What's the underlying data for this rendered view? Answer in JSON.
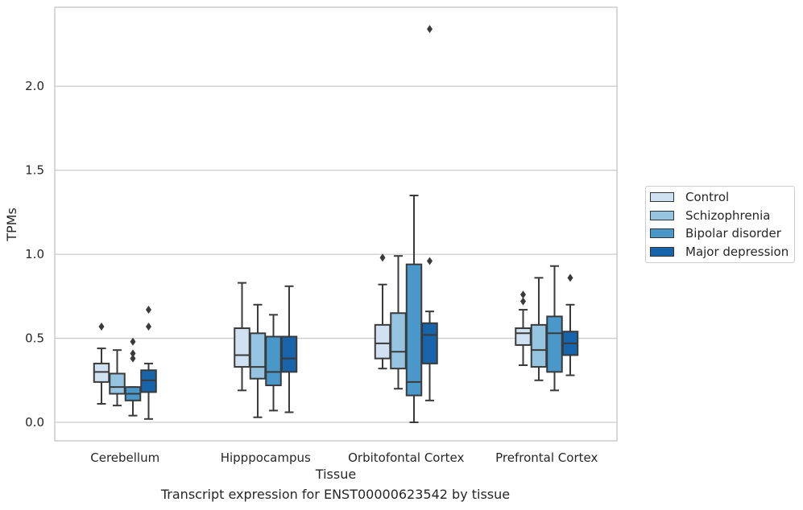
{
  "chart_data": {
    "type": "box",
    "title": "",
    "xlabel": "Tissue",
    "ylabel": "TPMs",
    "categories": [
      "Cerebellum",
      "Hipppocampus",
      "Orbitofontal Cortex",
      "Prefrontal Cortex"
    ],
    "ylim": [
      -0.11,
      2.47
    ],
    "yticks": [
      "0.0",
      "0.5",
      "1.0",
      "1.5",
      "2.0"
    ],
    "grid": "horizontal",
    "legend_position": "right",
    "series": [
      {
        "name": "Control",
        "color": "#d0e1f2",
        "boxes": [
          {
            "whisker_low": 0.11,
            "q1": 0.24,
            "median": 0.3,
            "q3": 0.35,
            "whisker_high": 0.44,
            "outliers": [
              0.57
            ]
          },
          {
            "whisker_low": 0.19,
            "q1": 0.33,
            "median": 0.4,
            "q3": 0.56,
            "whisker_high": 0.83,
            "outliers": []
          },
          {
            "whisker_low": 0.32,
            "q1": 0.38,
            "median": 0.47,
            "q3": 0.58,
            "whisker_high": 0.82,
            "outliers": [
              0.98
            ]
          },
          {
            "whisker_low": 0.34,
            "q1": 0.46,
            "median": 0.53,
            "q3": 0.56,
            "whisker_high": 0.67,
            "outliers": [
              0.72,
              0.76
            ]
          }
        ]
      },
      {
        "name": "Schizophrenia",
        "color": "#94c4df",
        "boxes": [
          {
            "whisker_low": 0.1,
            "q1": 0.17,
            "median": 0.21,
            "q3": 0.29,
            "whisker_high": 0.43,
            "outliers": []
          },
          {
            "whisker_low": 0.03,
            "q1": 0.26,
            "median": 0.33,
            "q3": 0.53,
            "whisker_high": 0.7,
            "outliers": []
          },
          {
            "whisker_low": 0.2,
            "q1": 0.32,
            "median": 0.42,
            "q3": 0.65,
            "whisker_high": 0.99,
            "outliers": []
          },
          {
            "whisker_low": 0.25,
            "q1": 0.33,
            "median": 0.43,
            "q3": 0.58,
            "whisker_high": 0.86,
            "outliers": []
          }
        ]
      },
      {
        "name": "Bipolar disorder",
        "color": "#4a98c9",
        "boxes": [
          {
            "whisker_low": 0.04,
            "q1": 0.13,
            "median": 0.17,
            "q3": 0.21,
            "whisker_high": 0.21,
            "outliers": [
              0.38,
              0.41,
              0.48
            ]
          },
          {
            "whisker_low": 0.07,
            "q1": 0.22,
            "median": 0.3,
            "q3": 0.51,
            "whisker_high": 0.64,
            "outliers": []
          },
          {
            "whisker_low": 0.0,
            "q1": 0.16,
            "median": 0.24,
            "q3": 0.94,
            "whisker_high": 1.35,
            "outliers": []
          },
          {
            "whisker_low": 0.19,
            "q1": 0.3,
            "median": 0.53,
            "q3": 0.63,
            "whisker_high": 0.93,
            "outliers": []
          }
        ]
      },
      {
        "name": "Major depression",
        "color": "#1764ab",
        "boxes": [
          {
            "whisker_low": 0.02,
            "q1": 0.18,
            "median": 0.25,
            "q3": 0.31,
            "whisker_high": 0.35,
            "outliers": [
              0.57,
              0.67
            ]
          },
          {
            "whisker_low": 0.06,
            "q1": 0.3,
            "median": 0.38,
            "q3": 0.51,
            "whisker_high": 0.81,
            "outliers": []
          },
          {
            "whisker_low": 0.13,
            "q1": 0.35,
            "median": 0.52,
            "q3": 0.59,
            "whisker_high": 0.66,
            "outliers": [
              0.96,
              2.34
            ]
          },
          {
            "whisker_low": 0.28,
            "q1": 0.4,
            "median": 0.47,
            "q3": 0.54,
            "whisker_high": 0.7,
            "outliers": [
              0.86
            ]
          }
        ]
      }
    ]
  },
  "caption": "Transcript expression for ENST00000623542 by tissue"
}
